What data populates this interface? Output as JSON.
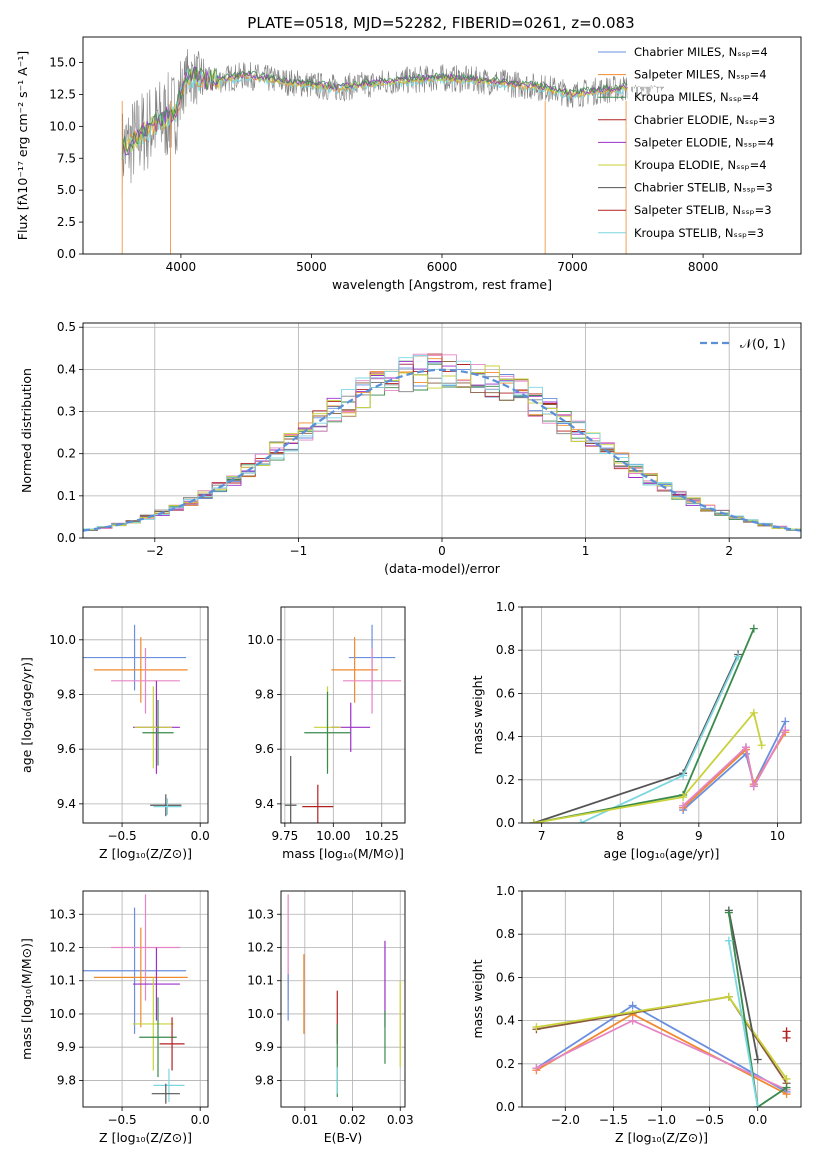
{
  "figure_title": "PLATE=0518, MJD=52282, FIBERID=0261, z=0.083",
  "palette": [
    "#6a8fdf",
    "#f08a2e",
    "#3a8a4d",
    "#b22222",
    "#9b30c8",
    "#8b5a3c",
    "#e685c4",
    "#808080",
    "#c8d23a",
    "#7dd6e0"
  ],
  "chart_data": [
    {
      "id": "spectrum",
      "type": "line",
      "title": "PLATE=0518, MJD=52282, FIBERID=0261, z=0.083",
      "xlabel": "wavelength [Angstrom, rest frame]",
      "ylabel": "Flux [fλ10⁻¹⁷ erg cm⁻² s⁻¹ A⁻¹]",
      "xlim": [
        3250,
        8750
      ],
      "ylim": [
        0,
        17
      ],
      "xticks": [
        4000,
        5000,
        6000,
        7000,
        8000
      ],
      "yticks": [
        0.0,
        2.5,
        5.0,
        7.5,
        10.0,
        12.5,
        15.0
      ],
      "legend_position": "top-right",
      "legend": [
        {
          "label": "Chabrier MILES, Nₛₛₚ=4",
          "color": "#6a8fdf"
        },
        {
          "label": "Salpeter MILES, Nₛₛₚ=4",
          "color": "#f08a2e"
        },
        {
          "label": "Kroupa MILES, Nₛₛₚ=4",
          "color": "#3a8a4d"
        },
        {
          "label": "Chabrier ELODIE, Nₛₛₚ=3",
          "color": "#b22222"
        },
        {
          "label": "Salpeter ELODIE, Nₛₛₚ=4",
          "color": "#9b30c8"
        },
        {
          "label": "Kroupa ELODIE, Nₛₛₚ=4",
          "color": "#c8d23a"
        },
        {
          "label": "Chabrier STELIB, Nₛₛₚ=3",
          "color": "#555555"
        },
        {
          "label": "Salpeter STELIB, Nₛₛₚ=3",
          "color": "#b22222"
        },
        {
          "label": "Kroupa STELIB, Nₛₛₚ=3",
          "color": "#7dd6e0"
        }
      ],
      "continuum": {
        "x": [
          3550,
          3700,
          3850,
          3950,
          4050,
          4200,
          4500,
          4800,
          5200,
          5600,
          6000,
          6400,
          6800,
          7000,
          7200,
          7400
        ],
        "y": [
          8.0,
          9.5,
          10.5,
          11.0,
          14.0,
          13.5,
          14.0,
          13.5,
          13.0,
          13.5,
          13.8,
          13.5,
          13.0,
          12.5,
          12.8,
          13.0
        ]
      },
      "spikes_down": [
        3550,
        3920,
        6790,
        7410
      ]
    },
    {
      "id": "residuals",
      "type": "histogram",
      "xlabel": "(data-model)/error",
      "ylabel": "Normed distribution",
      "xlim": [
        -2.5,
        2.5
      ],
      "ylim": [
        0,
        0.51
      ],
      "xticks": [
        -2,
        -1,
        0,
        1,
        2
      ],
      "yticks": [
        0.0,
        0.1,
        0.2,
        0.3,
        0.4,
        0.5
      ],
      "legend_position": "top-right",
      "reference_curve": {
        "label": "𝒩(0, 1)",
        "mean": 0,
        "sigma": 1,
        "style": "dashed",
        "color": "#5b8fd8"
      },
      "bin_width": 0.1,
      "n_series": 10
    },
    {
      "id": "age_vs_Z",
      "type": "errorbar",
      "xlabel": "Z [log₁₀(Z/Z⊙)]",
      "ylabel": "age  [log₁₀(age/yr)]",
      "xlim": [
        -0.75,
        0.05
      ],
      "ylim": [
        9.33,
        10.12
      ],
      "xticks": [
        -0.5,
        0.0
      ],
      "yticks": [
        9.4,
        9.6,
        9.8,
        10.0
      ],
      "points": [
        {
          "x": -0.42,
          "xerr": 0.33,
          "y": 9.935,
          "yerr": 0.12,
          "color": "#6a8fdf"
        },
        {
          "x": -0.38,
          "xerr": 0.3,
          "y": 9.89,
          "yerr": 0.12,
          "color": "#f08a2e"
        },
        {
          "x": -0.35,
          "xerr": 0.22,
          "y": 9.85,
          "yerr": 0.12,
          "color": "#e685c4"
        },
        {
          "x": -0.28,
          "xerr": 0.15,
          "y": 9.68,
          "yerr": 0.17,
          "color": "#9b30c8"
        },
        {
          "x": -0.3,
          "xerr": 0.12,
          "y": 9.68,
          "yerr": 0.15,
          "color": "#c8d23a"
        },
        {
          "x": -0.27,
          "xerr": 0.1,
          "y": 9.66,
          "yerr": 0.12,
          "color": "#3a8a4d"
        },
        {
          "x": -0.22,
          "xerr": 0.1,
          "y": 9.395,
          "yerr": 0.04,
          "color": "#555555"
        },
        {
          "x": -0.21,
          "xerr": 0.09,
          "y": 9.39,
          "yerr": 0.03,
          "color": "#7dd6e0"
        }
      ]
    },
    {
      "id": "age_vs_mass",
      "type": "errorbar",
      "xlabel": "mass [log₁₀(M/M⊙)]",
      "ylabel": "",
      "xlim": [
        9.73,
        10.37
      ],
      "ylim": [
        9.33,
        10.12
      ],
      "xticks": [
        9.75,
        10.0,
        10.25
      ],
      "yticks": [
        9.4,
        9.6,
        9.8,
        10.0
      ],
      "points": [
        {
          "x": 10.2,
          "xerr": 0.12,
          "y": 9.935,
          "yerr": 0.12,
          "color": "#6a8fdf"
        },
        {
          "x": 10.11,
          "xerr": 0.12,
          "y": 9.89,
          "yerr": 0.12,
          "color": "#f08a2e"
        },
        {
          "x": 10.2,
          "xerr": 0.15,
          "y": 9.85,
          "yerr": 0.12,
          "color": "#e685c4"
        },
        {
          "x": 10.09,
          "xerr": 0.1,
          "y": 9.68,
          "yerr": 0.09,
          "color": "#9b30c8"
        },
        {
          "x": 9.97,
          "xerr": 0.07,
          "y": 9.68,
          "yerr": 0.15,
          "color": "#c8d23a"
        },
        {
          "x": 9.97,
          "xerr": 0.12,
          "y": 9.66,
          "yerr": 0.15,
          "color": "#3a8a4d"
        },
        {
          "x": 9.92,
          "xerr": 0.08,
          "y": 9.39,
          "yerr": 0.08,
          "color": "#b22222"
        },
        {
          "x": 9.78,
          "xerr": 0.03,
          "y": 9.395,
          "yerr": 0.18,
          "color": "#555555"
        }
      ]
    },
    {
      "id": "weight_vs_age",
      "type": "line",
      "xlabel": "age  [log₁₀(age/yr)]",
      "ylabel": "mass weight",
      "xlim": [
        6.75,
        10.3
      ],
      "ylim": [
        0,
        1.0
      ],
      "xticks": [
        7,
        8,
        9,
        10
      ],
      "yticks": [
        0.0,
        0.2,
        0.4,
        0.6,
        0.8,
        1.0
      ],
      "series": [
        {
          "color": "#555555",
          "x": [
            6.9,
            8.8,
            9.5
          ],
          "y": [
            0.0,
            0.23,
            0.78
          ]
        },
        {
          "color": "#7dd6e0",
          "x": [
            7.5,
            8.8,
            9.5
          ],
          "y": [
            0.0,
            0.22,
            0.77
          ]
        },
        {
          "color": "#3a8a4d",
          "x": [
            6.9,
            8.8,
            9.7
          ],
          "y": [
            0.0,
            0.13,
            0.9
          ]
        },
        {
          "color": "#c8d23a",
          "x": [
            6.9,
            8.8,
            9.7,
            9.8
          ],
          "y": [
            0.0,
            0.12,
            0.51,
            0.36
          ]
        },
        {
          "color": "#9b30c8",
          "x": [
            8.8,
            9.6,
            9.7,
            10.1
          ],
          "y": [
            0.07,
            0.35,
            0.17,
            0.43
          ]
        },
        {
          "color": "#6a8fdf",
          "x": [
            8.8,
            9.6,
            9.7,
            10.1
          ],
          "y": [
            0.06,
            0.32,
            0.18,
            0.47
          ]
        },
        {
          "color": "#f08a2e",
          "x": [
            8.8,
            9.6,
            9.7,
            10.1
          ],
          "y": [
            0.07,
            0.34,
            0.18,
            0.42
          ]
        },
        {
          "color": "#e685c4",
          "x": [
            8.8,
            9.6,
            9.7,
            10.1
          ],
          "y": [
            0.08,
            0.35,
            0.17,
            0.43
          ]
        }
      ]
    },
    {
      "id": "mass_vs_Z",
      "type": "errorbar",
      "xlabel": "Z [log₁₀(Z/Z⊙)]",
      "ylabel": "mass [log₁₀(M/M⊙)]",
      "xlim": [
        -0.75,
        0.05
      ],
      "ylim": [
        9.72,
        10.37
      ],
      "xticks": [
        -0.5,
        0.0
      ],
      "yticks": [
        9.8,
        9.9,
        10.0,
        10.1,
        10.2,
        10.3
      ],
      "points": [
        {
          "x": -0.42,
          "xerr": 0.33,
          "y": 10.13,
          "yerr": 0.19,
          "color": "#6a8fdf"
        },
        {
          "x": -0.38,
          "xerr": 0.3,
          "y": 10.11,
          "yerr": 0.15,
          "color": "#f08a2e"
        },
        {
          "x": -0.35,
          "xerr": 0.22,
          "y": 10.2,
          "yerr": 0.16,
          "color": "#e685c4"
        },
        {
          "x": -0.28,
          "xerr": 0.15,
          "y": 10.09,
          "yerr": 0.11,
          "color": "#9b30c8"
        },
        {
          "x": -0.3,
          "xerr": 0.13,
          "y": 9.97,
          "yerr": 0.14,
          "color": "#c8d23a"
        },
        {
          "x": -0.27,
          "xerr": 0.12,
          "y": 9.93,
          "yerr": 0.12,
          "color": "#3a8a4d"
        },
        {
          "x": -0.18,
          "xerr": 0.08,
          "y": 9.91,
          "yerr": 0.08,
          "color": "#b22222"
        },
        {
          "x": -0.2,
          "xerr": 0.1,
          "y": 9.785,
          "yerr": 0.05,
          "color": "#7dd6e0"
        },
        {
          "x": -0.22,
          "xerr": 0.09,
          "y": 9.76,
          "yerr": 0.03,
          "color": "#555555"
        }
      ]
    },
    {
      "id": "mass_vs_ebv",
      "type": "errorbar",
      "xlabel": "E(B-V)",
      "ylabel": "",
      "xlim": [
        0.005,
        0.031
      ],
      "ylim": [
        9.72,
        10.37
      ],
      "xticks": [
        0.01,
        0.02,
        0.03
      ],
      "yticks": [
        9.8,
        9.9,
        10.0,
        10.1,
        10.2,
        10.3
      ],
      "points": [
        {
          "x": 0.0065,
          "xerr": 0,
          "y": 10.2,
          "yerr": 0.16,
          "color": "#e685c4"
        },
        {
          "x": 0.0065,
          "xerr": 0,
          "y": 10.05,
          "yerr": 0.07,
          "color": "#6a8fdf"
        },
        {
          "x": 0.0098,
          "xerr": 0,
          "y": 10.06,
          "yerr": 0.12,
          "color": "#f08a2e"
        },
        {
          "x": 0.0168,
          "xerr": 0,
          "y": 9.99,
          "yerr": 0.08,
          "color": "#b22222"
        },
        {
          "x": 0.0168,
          "xerr": 0,
          "y": 9.86,
          "yerr": 0.11,
          "color": "#3a8a4d"
        },
        {
          "x": 0.0168,
          "xerr": 0,
          "y": 9.8,
          "yerr": 0.04,
          "color": "#7dd6e0"
        },
        {
          "x": 0.0268,
          "xerr": 0,
          "y": 10.09,
          "yerr": 0.13,
          "color": "#9b30c8"
        },
        {
          "x": 0.0268,
          "xerr": 0,
          "y": 9.93,
          "yerr": 0.08,
          "color": "#3a8a4d"
        },
        {
          "x": 0.03,
          "xerr": 0,
          "y": 9.97,
          "yerr": 0.13,
          "color": "#c8d23a"
        }
      ]
    },
    {
      "id": "weight_vs_Z",
      "type": "line",
      "xlabel": "Z [log₁₀(Z/Z⊙)]",
      "ylabel": "mass weight",
      "xlim": [
        -2.45,
        0.45
      ],
      "ylim": [
        0,
        1.0
      ],
      "xticks": [
        -2.0,
        -1.5,
        -1.0,
        -0.5,
        0.0
      ],
      "yticks": [
        0.0,
        0.2,
        0.4,
        0.6,
        0.8,
        1.0
      ],
      "series": [
        {
          "color": "#6a8fdf",
          "x": [
            -2.3,
            -1.3,
            0.3
          ],
          "y": [
            0.18,
            0.47,
            0.07
          ]
        },
        {
          "color": "#f08a2e",
          "x": [
            -2.3,
            -1.3,
            0.3
          ],
          "y": [
            0.17,
            0.43,
            0.06
          ]
        },
        {
          "color": "#e685c4",
          "x": [
            -2.3,
            -1.3,
            0.3
          ],
          "y": [
            0.18,
            0.4,
            0.08
          ]
        },
        {
          "color": "#8b5a3c",
          "x": [
            -2.3,
            -0.3,
            0.3
          ],
          "y": [
            0.36,
            0.51,
            0.11
          ]
        },
        {
          "color": "#c8d23a",
          "x": [
            -2.3,
            -0.3,
            0.3
          ],
          "y": [
            0.37,
            0.51,
            0.13
          ]
        },
        {
          "color": "#555555",
          "x": [
            -0.3,
            0.0
          ],
          "y": [
            0.91,
            0.22
          ]
        },
        {
          "color": "#3a8a4d",
          "x": [
            -0.3,
            0.0,
            0.3
          ],
          "y": [
            0.9,
            0.0,
            0.09
          ]
        },
        {
          "color": "#7dd6e0",
          "x": [
            -0.3,
            0.0
          ],
          "y": [
            0.77,
            0.0
          ]
        },
        {
          "color": "#b22222",
          "x": [
            0.3,
            0.3
          ],
          "y": [
            0.32,
            0.35
          ]
        }
      ]
    }
  ]
}
